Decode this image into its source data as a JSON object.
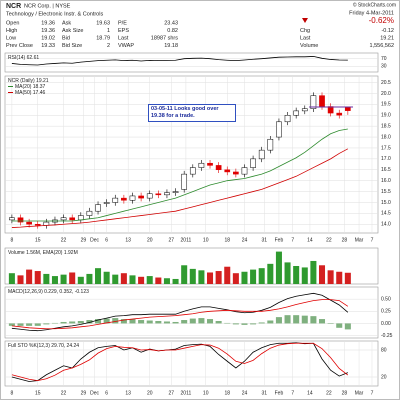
{
  "header": {
    "symbol": "NCR",
    "name": "NCR Corp. | NYSE",
    "copyright": "© StockCharts.com",
    "sector": "Technology / Electronic Instr. & Controls",
    "date": "Friday 4-Mar-2011",
    "change": "-0.62%",
    "quote": [
      [
        "Open",
        "19.36",
        "Ask",
        "19.63",
        "P/E",
        "23.43"
      ],
      [
        "High",
        "19.36",
        "Ask Size",
        "1",
        "EPS",
        "0.82"
      ],
      [
        "Low",
        "19.02",
        "Bid",
        "18.79",
        "Last",
        "18987 shrs"
      ],
      [
        "Prev Close",
        "19.33",
        "Bid Size",
        "2",
        "VWAP",
        "19.18"
      ]
    ],
    "summary": [
      [
        "Chg",
        "-0.12"
      ],
      [
        "Last",
        "19.21"
      ],
      [
        "Volume",
        "1,556,562"
      ]
    ]
  },
  "chart_data": [
    {
      "type": "line",
      "title": "RSI(14) 62.61",
      "ylim": [
        0,
        100
      ],
      "yticks": [
        30,
        70
      ],
      "series": [
        {
          "color": "#000000",
          "values": [
            45,
            40,
            38,
            37,
            42,
            45,
            48,
            46,
            52,
            56,
            60,
            62,
            64,
            60,
            62,
            58,
            61,
            60,
            61,
            62,
            70,
            72,
            73,
            70,
            65,
            62,
            60,
            63,
            67,
            70,
            74,
            78,
            79,
            80,
            80,
            82,
            72,
            66,
            63,
            62.61
          ]
        }
      ]
    },
    {
      "type": "candlestick",
      "title": "NCR (Daily) 19.21",
      "annotation": "03-05-11 Looks good over 19.38 for a trade.",
      "up_color": "#000000",
      "down_color": "#e00000",
      "xlim": [
        -0.8,
        42.5
      ],
      "xticks": [
        {
          "value": 0,
          "label": "8"
        },
        {
          "value": 3,
          "label": "15"
        },
        {
          "value": 6,
          "label": "22"
        },
        {
          "value": 8.3,
          "label": "29"
        },
        {
          "value": 9.6,
          "label": "Dec"
        },
        {
          "value": 11,
          "label": "6"
        },
        {
          "value": 13.5,
          "label": "13"
        },
        {
          "value": 16,
          "label": "20"
        },
        {
          "value": 18.5,
          "label": "27"
        },
        {
          "value": 20.2,
          "label": "2011"
        },
        {
          "value": 22.5,
          "label": "10"
        },
        {
          "value": 25,
          "label": "18"
        },
        {
          "value": 27,
          "label": "24"
        },
        {
          "value": 29.3,
          "label": "31"
        },
        {
          "value": 31,
          "label": "Feb"
        },
        {
          "value": 32.6,
          "label": "7"
        },
        {
          "value": 34.6,
          "label": "14"
        },
        {
          "value": 36.8,
          "label": "22"
        },
        {
          "value": 38.6,
          "label": "28"
        },
        {
          "value": 40.3,
          "label": "Mar"
        },
        {
          "value": 41.8,
          "label": "7"
        }
      ],
      "ylim": [
        13.6,
        20.8
      ],
      "yticks": [
        {
          "value": 14,
          "label": "14.0"
        },
        14.5,
        {
          "value": 15,
          "label": "15.0"
        },
        15.5,
        {
          "value": 16,
          "label": "16.0"
        },
        16.5,
        {
          "value": 17,
          "label": "17.0"
        },
        17.5,
        {
          "value": 18,
          "label": "18.0"
        },
        18.5,
        {
          "value": 19,
          "label": "19.0"
        },
        19.5,
        {
          "value": 20,
          "label": "20.0"
        },
        20.5
      ],
      "open": [
        14.2,
        14.3,
        14.1,
        14.0,
        13.95,
        14.1,
        14.2,
        14.3,
        14.2,
        14.4,
        14.6,
        14.95,
        15.0,
        15.2,
        15.1,
        15.3,
        15.2,
        15.4,
        15.35,
        15.45,
        15.6,
        16.3,
        16.6,
        16.8,
        16.7,
        16.5,
        16.4,
        16.3,
        16.6,
        17.0,
        17.4,
        18.0,
        18.7,
        19.0,
        19.2,
        19.3,
        19.9,
        19.4,
        19.1,
        19.36
      ],
      "high": [
        14.45,
        14.45,
        14.25,
        14.15,
        14.25,
        14.35,
        14.45,
        14.45,
        14.55,
        14.75,
        15.05,
        15.15,
        15.35,
        15.35,
        15.45,
        15.45,
        15.55,
        15.55,
        15.6,
        15.65,
        16.45,
        16.75,
        16.95,
        16.95,
        16.85,
        16.65,
        16.55,
        16.75,
        17.15,
        17.55,
        18.05,
        18.85,
        19.15,
        19.35,
        19.45,
        20.05,
        20.05,
        19.55,
        19.25,
        19.36
      ],
      "low": [
        14.05,
        13.95,
        13.85,
        13.8,
        13.8,
        13.95,
        14.05,
        14.05,
        14.05,
        14.25,
        14.45,
        14.8,
        14.85,
        14.95,
        14.95,
        15.05,
        15.05,
        15.2,
        15.2,
        15.3,
        15.45,
        16.15,
        16.45,
        16.55,
        16.35,
        16.25,
        16.15,
        16.15,
        16.45,
        16.85,
        17.25,
        17.85,
        18.55,
        18.85,
        19.05,
        19.15,
        19.25,
        18.95,
        18.85,
        19.02
      ],
      "close": [
        14.3,
        14.1,
        14.0,
        13.95,
        14.1,
        14.2,
        14.3,
        14.2,
        14.4,
        14.6,
        14.9,
        15.0,
        15.2,
        15.1,
        15.3,
        15.2,
        15.4,
        15.35,
        15.45,
        15.5,
        16.3,
        16.6,
        16.8,
        16.7,
        16.5,
        16.4,
        16.3,
        16.6,
        17.0,
        17.4,
        17.9,
        18.7,
        19.0,
        19.2,
        19.3,
        19.9,
        19.4,
        19.1,
        19.0,
        19.21
      ],
      "hline": {
        "value": 19.38,
        "color": "#6a2fa0"
      },
      "series": [
        {
          "name": "MA(20) 18.37",
          "color": "#2e8b2e",
          "values": [
            14.15,
            14.15,
            14.15,
            14.15,
            14.15,
            14.15,
            14.15,
            14.15,
            14.2,
            14.25,
            14.3,
            14.4,
            14.5,
            14.6,
            14.7,
            14.8,
            14.9,
            15.0,
            15.1,
            15.2,
            15.35,
            15.5,
            15.65,
            15.8,
            15.9,
            16.0,
            16.05,
            16.1,
            16.2,
            16.3,
            16.45,
            16.65,
            16.85,
            17.05,
            17.3,
            17.6,
            17.9,
            18.15,
            18.3,
            18.37
          ]
        },
        {
          "name": "MA(50) 17.46",
          "color": "#d00000",
          "values": [
            13.85,
            13.87,
            13.9,
            13.92,
            13.95,
            13.97,
            14.0,
            14.03,
            14.06,
            14.1,
            14.15,
            14.2,
            14.25,
            14.3,
            14.35,
            14.4,
            14.45,
            14.5,
            14.55,
            14.6,
            14.7,
            14.8,
            14.9,
            15.0,
            15.1,
            15.2,
            15.3,
            15.4,
            15.5,
            15.6,
            15.75,
            15.9,
            16.05,
            16.2,
            16.4,
            16.6,
            16.8,
            17.0,
            17.25,
            17.46
          ]
        }
      ]
    },
    {
      "type": "bar",
      "title": "Volume 1.56M, EMA(20) 1.92M",
      "ylim": [
        0,
        5
      ],
      "up_color": "#2f9a2f",
      "down_color": "#d42020",
      "values": [
        1.5,
        1.2,
        2.0,
        1.8,
        1.4,
        1.1,
        1.3,
        1.6,
        1.0,
        1.4,
        2.2,
        1.7,
        1.3,
        1.5,
        1.2,
        1.0,
        1.1,
        0.9,
        0.8,
        0.7,
        2.6,
        2.1,
        1.9,
        1.6,
        1.8,
        2.4,
        1.5,
        1.7,
        2.0,
        2.2,
        2.8,
        4.5,
        3.0,
        2.5,
        2.3,
        3.2,
        2.6,
        1.9,
        1.7,
        1.56
      ]
    },
    {
      "type": "line",
      "title": "MACD(12,26,9) 0.229, 0.352, -0.123",
      "ylim": [
        -0.3,
        0.75
      ],
      "yticks": [
        {
          "value": 0.5,
          "label": "0.50"
        },
        0.25,
        {
          "value": 0,
          "label": "0.00"
        },
        -0.25
      ],
      "series": [
        {
          "style": "bar",
          "color": "#7fb07f",
          "values": [
            -0.05,
            -0.05,
            -0.05,
            -0.05,
            -0.02,
            0.01,
            0.03,
            0.04,
            0.05,
            0.07,
            0.09,
            0.1,
            0.11,
            0.09,
            0.09,
            0.07,
            0.06,
            0.05,
            0.04,
            0.03,
            0.07,
            0.1,
            0.11,
            0.09,
            0.05,
            0.01,
            -0.02,
            -0.03,
            -0.02,
            0.02,
            0.06,
            0.13,
            0.17,
            0.17,
            0.16,
            0.15,
            0.09,
            -0.01,
            -0.09,
            -0.123
          ]
        },
        {
          "color": "#000000",
          "values": [
            -0.1,
            -0.12,
            -0.14,
            -0.15,
            -0.13,
            -0.1,
            -0.07,
            -0.05,
            -0.02,
            0.02,
            0.07,
            0.11,
            0.15,
            0.16,
            0.18,
            0.18,
            0.19,
            0.19,
            0.19,
            0.19,
            0.25,
            0.3,
            0.34,
            0.34,
            0.31,
            0.28,
            0.24,
            0.22,
            0.23,
            0.27,
            0.33,
            0.43,
            0.51,
            0.56,
            0.59,
            0.62,
            0.58,
            0.48,
            0.38,
            0.229
          ]
        },
        {
          "color": "#e00000",
          "values": [
            -0.05,
            -0.07,
            -0.09,
            -0.1,
            -0.11,
            -0.11,
            -0.1,
            -0.09,
            -0.07,
            -0.05,
            -0.02,
            0.01,
            0.04,
            0.07,
            0.09,
            0.11,
            0.13,
            0.14,
            0.15,
            0.16,
            0.18,
            0.2,
            0.23,
            0.25,
            0.26,
            0.27,
            0.26,
            0.25,
            0.25,
            0.25,
            0.27,
            0.3,
            0.34,
            0.39,
            0.43,
            0.47,
            0.49,
            0.49,
            0.47,
            0.352
          ]
        }
      ]
    },
    {
      "type": "line",
      "title": "Full STO %K(12,3) 29.70, 24.24",
      "ylim": [
        0,
        100
      ],
      "yticks": [
        20,
        80
      ],
      "xticks": [
        {
          "value": 0,
          "label": "8"
        },
        {
          "value": 3,
          "label": "15"
        },
        {
          "value": 6,
          "label": "22"
        },
        {
          "value": 8.3,
          "label": "29"
        },
        {
          "value": 9.6,
          "label": "Dec"
        },
        {
          "value": 11,
          "label": "6"
        },
        {
          "value": 13.5,
          "label": "13"
        },
        {
          "value": 16,
          "label": "20"
        },
        {
          "value": 18.5,
          "label": "27"
        },
        {
          "value": 20.2,
          "label": "2011"
        },
        {
          "value": 22.5,
          "label": "10"
        },
        {
          "value": 25,
          "label": "18"
        },
        {
          "value": 27,
          "label": "24"
        },
        {
          "value": 29.3,
          "label": "31"
        },
        {
          "value": 31,
          "label": "Feb"
        },
        {
          "value": 32.6,
          "label": "7"
        },
        {
          "value": 34.6,
          "label": "14"
        },
        {
          "value": 36.8,
          "label": "22"
        },
        {
          "value": 38.6,
          "label": "28"
        },
        {
          "value": 40.3,
          "label": "Mar"
        },
        {
          "value": 41.8,
          "label": "7"
        }
      ],
      "series": [
        {
          "color": "#000000",
          "values": [
            20,
            15,
            10,
            12,
            25,
            35,
            45,
            40,
            60,
            75,
            85,
            88,
            90,
            80,
            85,
            75,
            82,
            78,
            80,
            82,
            90,
            92,
            93,
            88,
            70,
            55,
            40,
            55,
            75,
            85,
            92,
            95,
            95,
            96,
            94,
            95,
            60,
            35,
            22,
            29.7
          ]
        },
        {
          "color": "#e00000",
          "values": [
            25,
            20,
            15,
            12,
            16,
            24,
            35,
            40,
            48,
            58,
            73,
            83,
            88,
            86,
            85,
            80,
            81,
            78,
            80,
            80,
            84,
            88,
            92,
            91,
            84,
            71,
            55,
            50,
            57,
            72,
            84,
            91,
            94,
            95,
            95,
            95,
            83,
            63,
            39,
            24.24
          ]
        }
      ]
    }
  ]
}
